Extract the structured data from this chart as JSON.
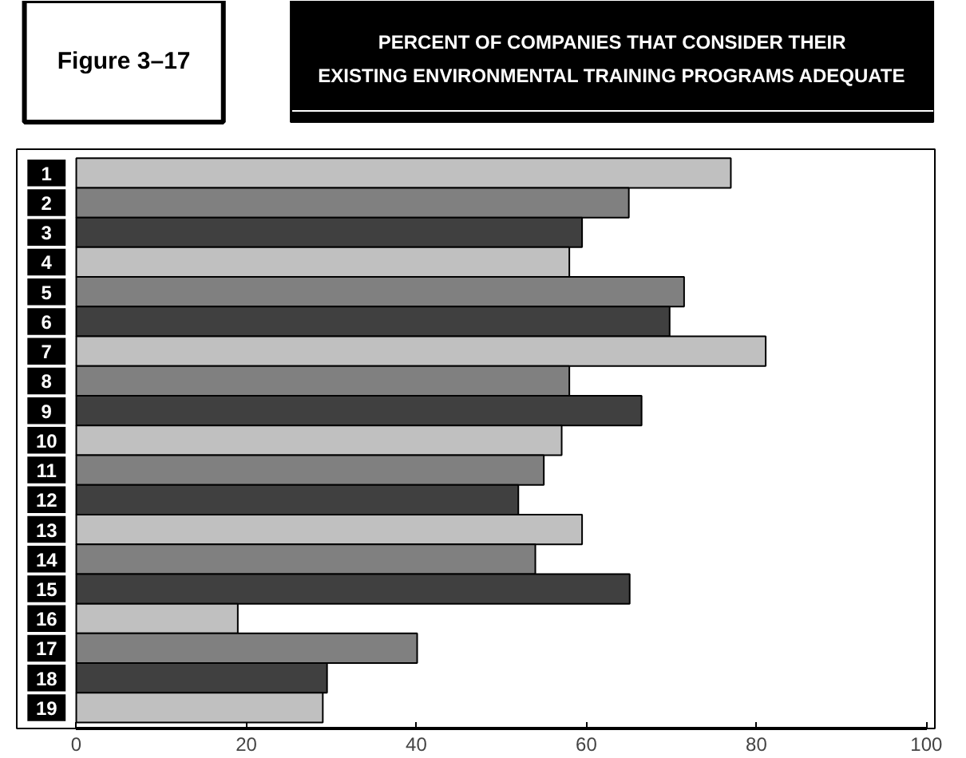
{
  "chart_data": {
    "type": "bar",
    "orientation": "horizontal",
    "title": "PERCENT OF COMPANIES THAT CONSIDER THEIR EXISTING ENVIRONMENTAL TRAINING PROGRAMS ADEQUATE",
    "annotations": [
      "Figure 3–17"
    ],
    "categories": [
      "1",
      "2",
      "3",
      "4",
      "5",
      "6",
      "7",
      "8",
      "9",
      "10",
      "11",
      "12",
      "13",
      "14",
      "15",
      "16",
      "17",
      "18",
      "19"
    ],
    "values": [
      77.0,
      65.0,
      59.5,
      58.0,
      71.5,
      69.8,
      81.1,
      58.0,
      66.5,
      57.1,
      55.0,
      52.0,
      59.5,
      54.0,
      65.1,
      19.0,
      40.1,
      29.5,
      29.0
    ],
    "colors": [
      "#c0c0c0",
      "#808080",
      "#404040",
      "#c0c0c0",
      "#808080",
      "#404040",
      "#c0c0c0",
      "#808080",
      "#404040",
      "#c0c0c0",
      "#808080",
      "#404040",
      "#c0c0c0",
      "#808080",
      "#404040",
      "#c0c0c0",
      "#808080",
      "#404040",
      "#c0c0c0"
    ],
    "xlim": [
      0,
      100
    ],
    "xticks": [
      0,
      20,
      40,
      60,
      80,
      100
    ],
    "grid": false
  }
}
